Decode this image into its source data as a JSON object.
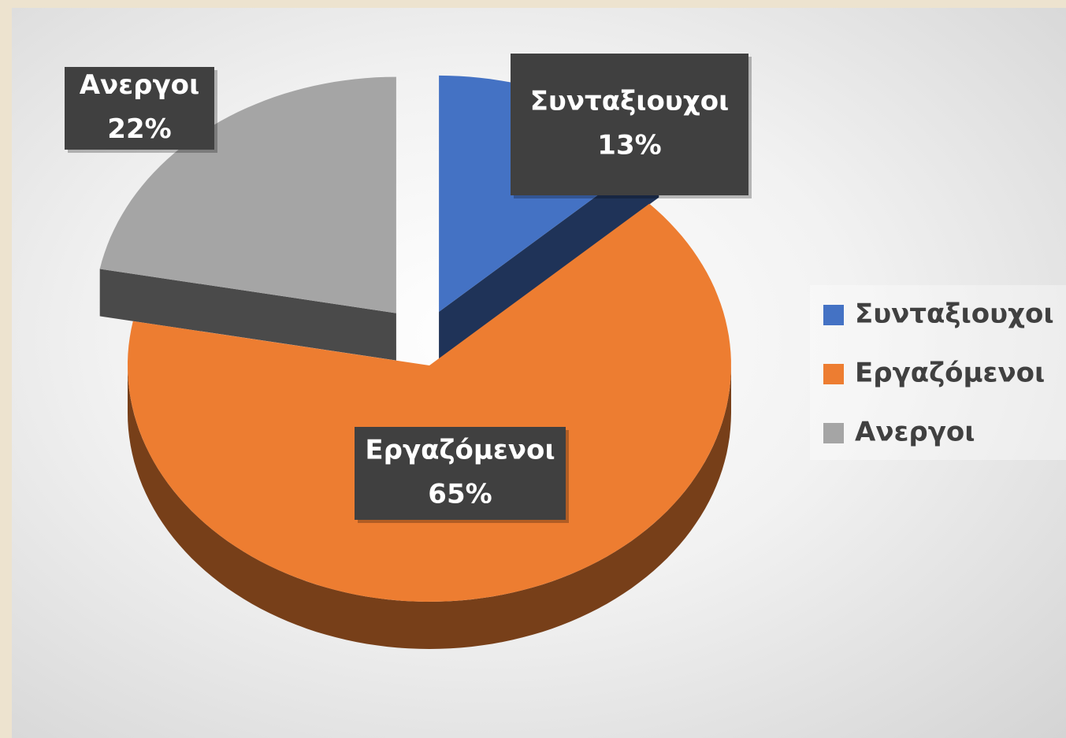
{
  "chart_data": {
    "type": "pie",
    "categories": [
      "Συνταξιουχοι",
      "Εργαζόμενοι",
      "Ανεργοι"
    ],
    "values": [
      13,
      65,
      22
    ],
    "value_labels": [
      "13%",
      "65%",
      "22%"
    ],
    "colors": [
      "#4472c4",
      "#ed7d31",
      "#a5a5a5"
    ],
    "legend": "right"
  }
}
